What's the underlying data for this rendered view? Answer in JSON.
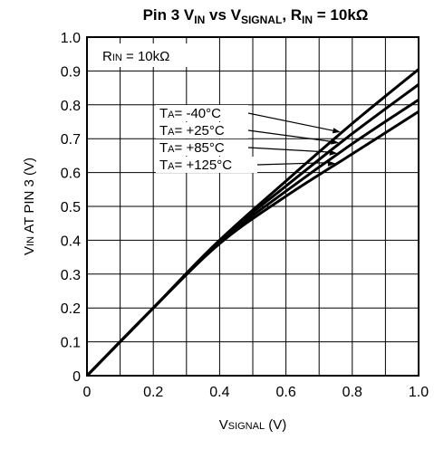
{
  "chart_data": {
    "type": "line",
    "title": {
      "prefix": "Pin 3 V",
      "sub1": "IN",
      "mid1": " vs V",
      "sub2": "SIGNAL",
      "mid2": ", R",
      "sub3": "IN",
      "suffix": " = 10kΩ"
    },
    "xlabel": {
      "main": "V",
      "small": "SIGNAL",
      "unit": " (V)"
    },
    "ylabel": {
      "main": "V",
      "small": "IN",
      "rest": " AT PIN 3 (V)"
    },
    "xlim": [
      0,
      1.0
    ],
    "ylim": [
      0,
      1.0
    ],
    "x_ticks": [
      "0",
      "0.2",
      "0.4",
      "0.6",
      "0.8",
      "1.0"
    ],
    "y_ticks": [
      "0",
      "0.1",
      "0.2",
      "0.3",
      "0.4",
      "0.5",
      "0.6",
      "0.7",
      "0.8",
      "0.9",
      "1.0"
    ],
    "grid": true,
    "condition_label": {
      "main": "R",
      "small": "IN",
      "rest": " = 10kΩ"
    },
    "series": [
      {
        "name": {
          "main": "T",
          "small": "A",
          "rest": "= -40°C"
        },
        "x": [
          0,
          0.2,
          0.4,
          0.6,
          0.8,
          1.0
        ],
        "y": [
          0,
          0.2,
          0.4,
          0.575,
          0.745,
          0.905
        ]
      },
      {
        "name": {
          "main": "T",
          "small": "A",
          "rest": "= +25°C"
        },
        "x": [
          0,
          0.2,
          0.4,
          0.6,
          0.8,
          1.0
        ],
        "y": [
          0,
          0.2,
          0.4,
          0.56,
          0.715,
          0.86
        ]
      },
      {
        "name": {
          "main": "T",
          "small": "A",
          "rest": "= +85°C"
        },
        "x": [
          0,
          0.2,
          0.4,
          0.6,
          0.8,
          1.0
        ],
        "y": [
          0,
          0.2,
          0.395,
          0.545,
          0.685,
          0.815
        ]
      },
      {
        "name": {
          "main": "T",
          "small": "A",
          "rest": "= +125°C"
        },
        "x": [
          0,
          0.2,
          0.4,
          0.6,
          0.8,
          1.0
        ],
        "y": [
          0,
          0.2,
          0.39,
          0.53,
          0.655,
          0.78
        ]
      }
    ]
  }
}
